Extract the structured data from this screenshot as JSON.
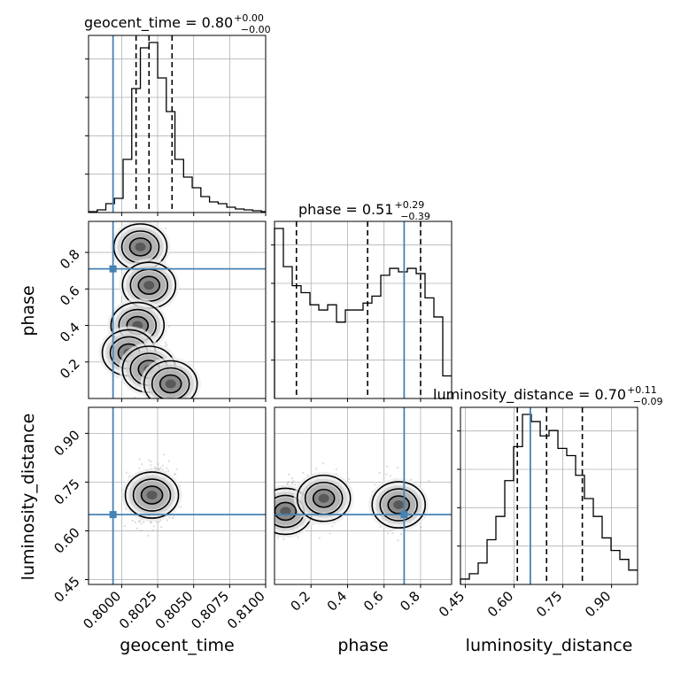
{
  "chart_data": {
    "type": "corner",
    "grid": true,
    "truth_color": "#4682b4",
    "hist_color": "#000000",
    "parameters": [
      "geocent_time",
      "phase",
      "luminosity_distance"
    ],
    "truth": {
      "geocent_time": 0.7994,
      "phase": 0.71,
      "luminosity_distance": 0.65
    },
    "quantiles": {
      "geocent_time": [
        0.801,
        0.8019,
        0.8035
      ],
      "phase": [
        0.12,
        0.51,
        0.8
      ],
      "luminosity_distance": [
        0.61,
        0.7,
        0.81
      ]
    },
    "titles": {
      "geocent_time": {
        "name": "geocent_time",
        "value": "0.80",
        "plus": "+0.00",
        "minus": "−0.00"
      },
      "phase": {
        "name": "phase",
        "value": "0.51",
        "plus": "+0.29",
        "minus": "−0.39"
      },
      "luminosity_distance": {
        "name": "luminosity_distance",
        "value": "0.70",
        "plus": "+0.11",
        "minus": "−0.09"
      }
    },
    "axes": {
      "geocent_time": {
        "label": "geocent_time",
        "range": [
          0.7977,
          0.81
        ],
        "ticks": [
          0.8,
          0.8025,
          0.805,
          0.8075,
          0.81
        ],
        "tick_labels": [
          "0.8000",
          "0.8025",
          "0.8050",
          "0.8075",
          "0.8100"
        ]
      },
      "phase": {
        "label": "phase",
        "range": [
          0.0,
          0.97
        ],
        "ticks": [
          0.2,
          0.4,
          0.6,
          0.8
        ],
        "tick_labels": [
          "0.2",
          "0.4",
          "0.6",
          "0.8"
        ]
      },
      "luminosity_distance": {
        "label": "luminosity_distance",
        "range": [
          0.435,
          0.98
        ],
        "ticks": [
          0.45,
          0.6,
          0.75,
          0.9
        ],
        "tick_labels": [
          "0.45",
          "0.60",
          "0.75",
          "0.90"
        ]
      }
    },
    "histograms": {
      "geocent_time": {
        "bin_edges": [
          0.7977,
          0.7983,
          0.7989,
          0.7995,
          0.8001,
          0.8007,
          0.8013,
          0.8019,
          0.8025,
          0.8031,
          0.8037,
          0.8043,
          0.8049,
          0.8055,
          0.8061,
          0.8067,
          0.8073,
          0.8079,
          0.8085,
          0.8091,
          0.8097,
          0.81
        ],
        "counts": [
          0.5,
          1.5,
          5,
          8,
          30,
          70,
          93,
          96,
          76,
          57,
          30,
          20,
          14,
          9,
          6,
          5,
          3,
          2,
          1.5,
          1,
          0.5
        ]
      },
      "phase": {
        "bin_edges": [
          0.0,
          0.0485,
          0.097,
          0.1455,
          0.194,
          0.2425,
          0.291,
          0.3395,
          0.388,
          0.4365,
          0.485,
          0.5335,
          0.582,
          0.6305,
          0.679,
          0.7275,
          0.776,
          0.8245,
          0.873,
          0.9215,
          0.97
        ],
        "counts": [
          98,
          76,
          65,
          61,
          54,
          51,
          54,
          44,
          51,
          51,
          55,
          59,
          71,
          75,
          73,
          75,
          72,
          58,
          47,
          13
        ]
      },
      "luminosity_distance": {
        "bin_edges": [
          0.435,
          0.4623,
          0.4895,
          0.5168,
          0.544,
          0.5713,
          0.5985,
          0.6258,
          0.653,
          0.6803,
          0.7075,
          0.7348,
          0.762,
          0.7893,
          0.8165,
          0.8438,
          0.871,
          0.8983,
          0.9255,
          0.9528,
          0.98
        ],
        "counts": [
          3,
          6,
          12,
          25,
          38,
          58,
          77,
          95,
          91,
          83,
          86,
          76,
          72,
          61,
          48,
          38,
          26,
          19,
          14,
          8
        ]
      }
    },
    "contour_centers": {
      "geocent_time-phase": [
        [
          0.8013,
          0.83
        ],
        [
          0.8019,
          0.62
        ],
        [
          0.8011,
          0.4
        ],
        [
          0.8005,
          0.25
        ],
        [
          0.8019,
          0.16
        ],
        [
          0.8034,
          0.08
        ]
      ],
      "geocent_time-luminosity_distance": [
        [
          0.8021,
          0.71
        ]
      ],
      "phase-luminosity_distance": [
        [
          0.06,
          0.66
        ],
        [
          0.27,
          0.7
        ],
        [
          0.68,
          0.68
        ]
      ]
    }
  }
}
